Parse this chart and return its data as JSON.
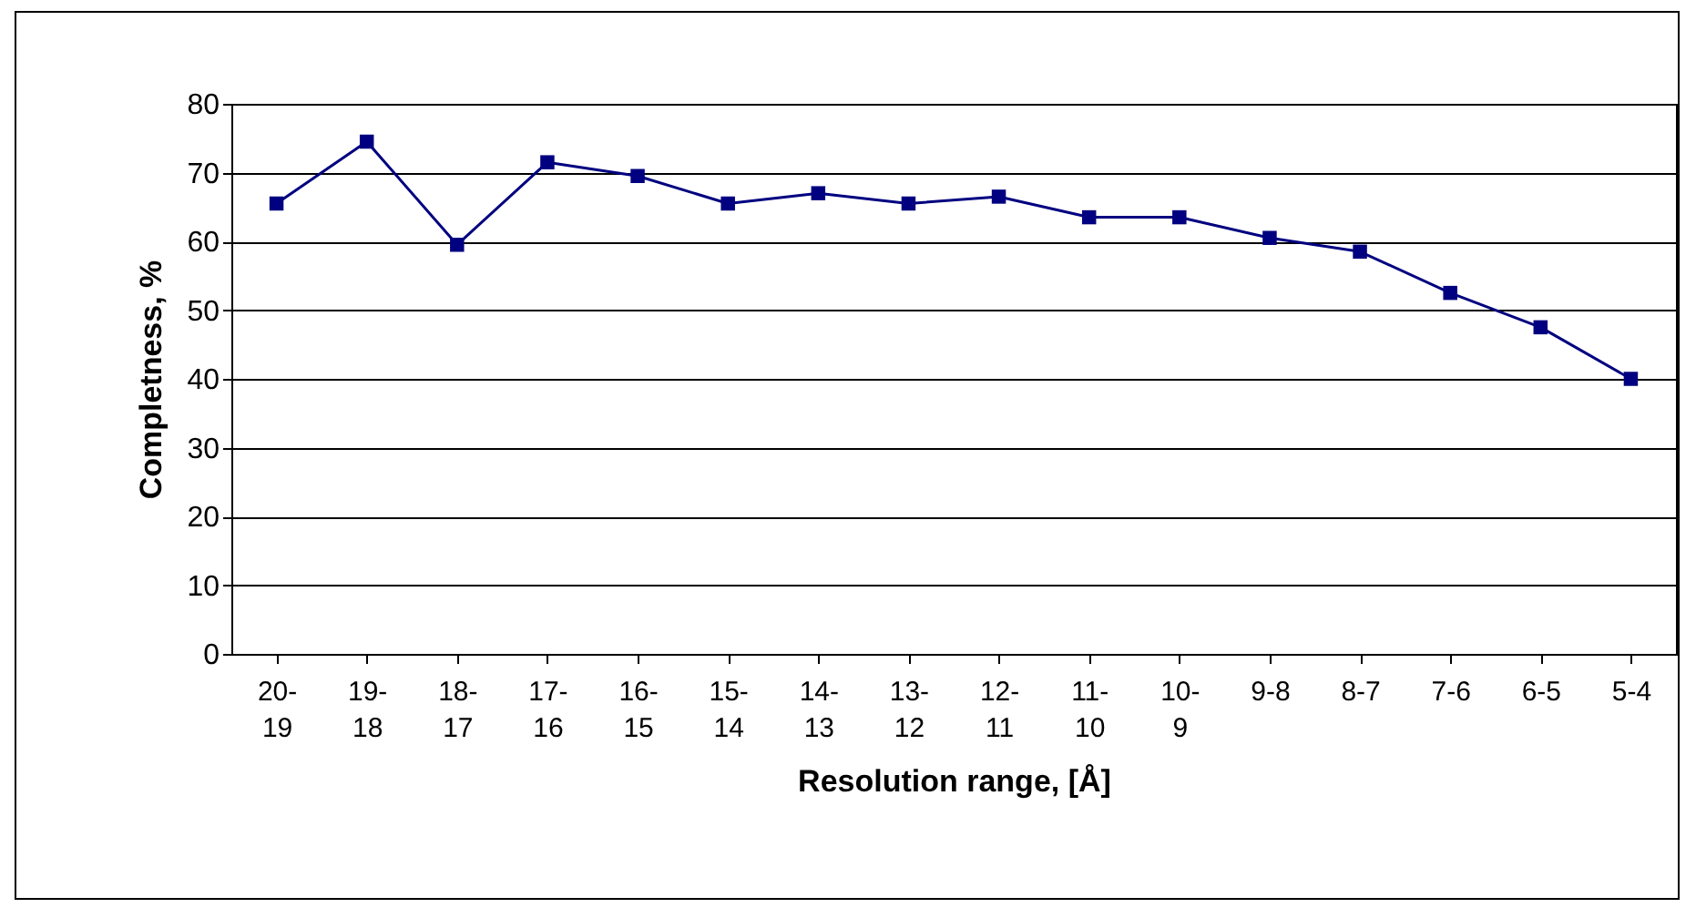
{
  "chart_data": {
    "type": "line",
    "categories": [
      "20-19",
      "19-18",
      "18-17",
      "17-16",
      "16-15",
      "15-14",
      "14-13",
      "13-12",
      "12-11",
      "11-10",
      "10-9",
      "9-8",
      "8-7",
      "7-6",
      "6-5",
      "5-4"
    ],
    "series": [
      {
        "color": "#000080",
        "values": [
          65.5,
          74.5,
          59.5,
          71.5,
          69.5,
          65.5,
          67,
          65.5,
          66.5,
          63.5,
          63.5,
          60.5,
          58.5,
          52.5,
          47.5,
          40
        ]
      }
    ],
    "xlabel": "Resolution range,   [Å]",
    "ylabel": "Completness, %",
    "ylim": [
      0,
      80
    ],
    "yticks": [
      0,
      10,
      20,
      30,
      40,
      50,
      60,
      70,
      80
    ],
    "grid": "y",
    "marker": "square",
    "line_style": "solid"
  }
}
